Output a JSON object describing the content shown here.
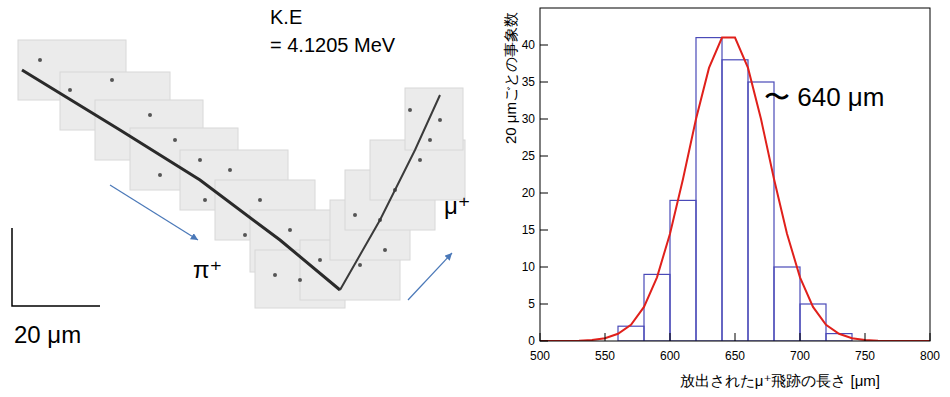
{
  "panel": {
    "energy_label": "K.E",
    "energy_value": "= 4.1205 MeV",
    "particle_in": "π⁺",
    "particle_out": "μ⁺",
    "scale_bar": "20 μm"
  },
  "chart_data": {
    "type": "histogram",
    "annotation": "〜 640 μm",
    "xlabel": "放出されたμ⁺飛跡の長さ [μm]",
    "ylabel": "20 μmごとの事象数",
    "bins": [
      560,
      580,
      600,
      620,
      640,
      660,
      680,
      700,
      720,
      740
    ],
    "values": [
      2,
      9,
      19,
      41,
      38,
      35,
      10,
      5,
      1
    ],
    "color": "#4a4ab8",
    "fit": {
      "type": "line",
      "color": "#e0201b",
      "x": [
        500,
        510,
        520,
        530,
        540,
        550,
        560,
        570,
        580,
        590,
        600,
        610,
        620,
        630,
        640,
        650,
        660,
        670,
        680,
        690,
        700,
        710,
        720,
        730,
        740,
        750,
        760,
        770,
        780,
        790,
        800
      ],
      "values": [
        0,
        0,
        0.01,
        0.04,
        0.13,
        0.38,
        0.97,
        2.2,
        4.6,
        8.6,
        14.5,
        21.9,
        30.0,
        36.9,
        41.0,
        41.0,
        36.9,
        30.0,
        21.9,
        14.5,
        8.6,
        4.6,
        2.2,
        0.97,
        0.38,
        0.13,
        0.04,
        0.01,
        0,
        0,
        0
      ]
    },
    "xlim": [
      500,
      800
    ],
    "xticks": [
      500,
      550,
      600,
      650,
      700,
      750,
      800
    ],
    "ylim": [
      0,
      45
    ],
    "yticks": [
      0,
      5,
      10,
      15,
      20,
      25,
      30,
      35,
      40
    ],
    "grid": false
  }
}
